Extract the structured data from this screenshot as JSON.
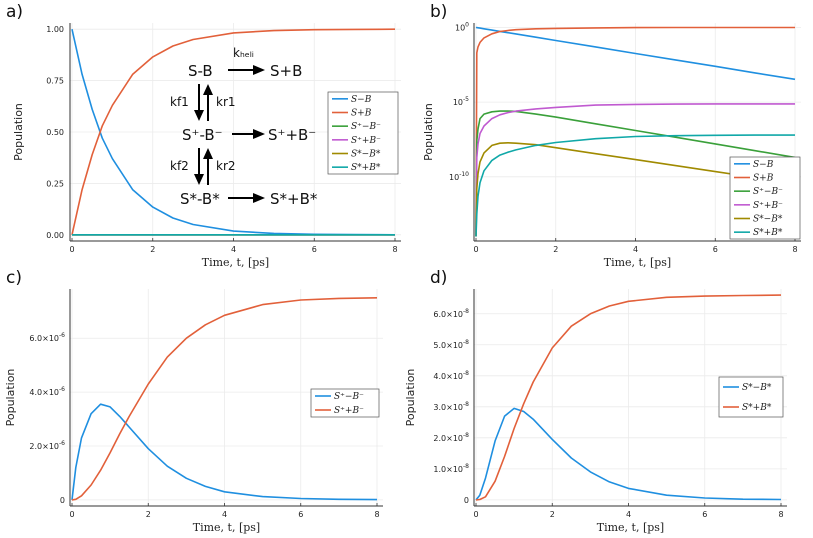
{
  "colors": {
    "blue": "#1f8fe0",
    "orange": "#e2603a",
    "green": "#3aa03a",
    "purple": "#c05ad0",
    "olive": "#a08a00",
    "teal": "#10a8a8",
    "grid": "#ebebeb",
    "axis": "#333333"
  },
  "scheme": {
    "sb": "S-B",
    "sb_prod": "S+B",
    "splus": "S⁺-B⁻",
    "splus_prod": "S⁺+B⁻",
    "sstar": "S*-B*",
    "sstar_prod": "S*+B*",
    "k_heli": "kₕₑₗᵢ",
    "k_f1": "kf1",
    "k_r1": "kr1",
    "k_f2": "kf2",
    "k_r2": "kr2"
  },
  "chart_data": [
    {
      "panel": "a)",
      "type": "line",
      "xlabel": "Time, t, [ps]",
      "ylabel": "Population",
      "xlim": [
        0,
        8
      ],
      "ylim": [
        0,
        1
      ],
      "xticks": [
        "0",
        "2",
        "4",
        "6",
        "8"
      ],
      "yticks": [
        "0.00",
        "0.25",
        "0.50",
        "0.75",
        "1.00"
      ],
      "legend_position": "right-middle",
      "x": [
        0,
        0.25,
        0.5,
        0.75,
        1,
        1.5,
        2,
        2.5,
        3,
        4,
        5,
        6,
        7,
        8
      ],
      "series": [
        {
          "name": "S−B",
          "color": "blue",
          "values": [
            1,
            0.78,
            0.61,
            0.47,
            0.37,
            0.22,
            0.135,
            0.082,
            0.05,
            0.018,
            0.007,
            0.0025,
            0.0009,
            0.0003
          ]
        },
        {
          "name": "S+B",
          "color": "orange",
          "values": [
            0,
            0.22,
            0.39,
            0.53,
            0.63,
            0.78,
            0.865,
            0.918,
            0.95,
            0.982,
            0.993,
            0.9975,
            0.9991,
            0.9997
          ]
        },
        {
          "name": "S⁺−B⁻",
          "color": "green",
          "values": [
            0,
            0,
            0,
            0,
            0,
            0,
            0,
            0,
            0,
            0,
            0,
            0,
            0,
            0
          ]
        },
        {
          "name": "S⁺+B⁻",
          "color": "purple",
          "values": [
            0,
            0,
            0,
            0,
            0,
            0,
            0,
            0,
            0,
            0,
            0,
            0,
            0,
            0
          ]
        },
        {
          "name": "S*−B*",
          "color": "olive",
          "values": [
            0,
            0,
            0,
            0,
            0,
            0,
            0,
            0,
            0,
            0,
            0,
            0,
            0,
            0
          ]
        },
        {
          "name": "S*+B*",
          "color": "teal",
          "values": [
            0,
            0,
            0,
            0,
            0,
            0,
            0,
            0,
            0,
            0,
            0,
            0,
            0,
            0
          ]
        }
      ]
    },
    {
      "panel": "b)",
      "type": "line",
      "yscale": "log",
      "xlabel": "Time, t, [ps]",
      "ylabel": "Population",
      "xlim": [
        0,
        8
      ],
      "ylim_log10": [
        -14.3,
        0.3
      ],
      "xticks": [
        "0",
        "2",
        "4",
        "6",
        "8"
      ],
      "yticks": [
        {
          "base": "10",
          "exp": "0",
          "value": 0
        },
        {
          "base": "10",
          "exp": "-5",
          "value": -5
        },
        {
          "base": "10",
          "exp": "-10",
          "value": -10
        }
      ],
      "legend_position": "bottom-right",
      "x": [
        0,
        0.02,
        0.05,
        0.1,
        0.2,
        0.4,
        0.6,
        0.8,
        1,
        1.5,
        2,
        3,
        4,
        5,
        6,
        7,
        8
      ],
      "series": [
        {
          "name": "S−B",
          "color": "blue",
          "log10_values": [
            0,
            -0.009,
            -0.022,
            -0.043,
            -0.087,
            -0.174,
            -0.26,
            -0.35,
            -0.43,
            -0.65,
            -0.87,
            -1.3,
            -1.74,
            -2.17,
            -2.6,
            -3.04,
            -3.47
          ]
        },
        {
          "name": "S+B",
          "color": "orange",
          "log10_values": [
            -14,
            -1.7,
            -1.3,
            -1.0,
            -0.7,
            -0.42,
            -0.27,
            -0.2,
            -0.15,
            -0.09,
            -0.06,
            -0.025,
            -0.01,
            -0.004,
            -0.002,
            -0.001,
            0
          ]
        },
        {
          "name": "S⁺−B⁻",
          "color": "green",
          "log10_values": [
            -14,
            -7.6,
            -6.8,
            -6.1,
            -5.8,
            -5.65,
            -5.6,
            -5.6,
            -5.62,
            -5.8,
            -6.0,
            -6.45,
            -6.9,
            -7.35,
            -7.8,
            -8.25,
            -8.7
          ]
        },
        {
          "name": "S⁺+B⁻",
          "color": "purple",
          "log10_values": [
            -14,
            -8.7,
            -7.8,
            -7.1,
            -6.6,
            -6.1,
            -5.85,
            -5.7,
            -5.6,
            -5.45,
            -5.35,
            -5.2,
            -5.15,
            -5.13,
            -5.12,
            -5.12,
            -5.12
          ]
        },
        {
          "name": "S*−B*",
          "color": "olive",
          "log10_values": [
            -14,
            -10.8,
            -9.8,
            -9.0,
            -8.4,
            -7.9,
            -7.75,
            -7.72,
            -7.75,
            -7.85,
            -8.05,
            -8.45,
            -8.85,
            -9.25,
            -9.65,
            -10.05,
            -10.45
          ]
        },
        {
          "name": "S*+B*",
          "color": "teal",
          "log10_values": [
            -14,
            -12.5,
            -11.3,
            -10.4,
            -9.6,
            -8.9,
            -8.55,
            -8.35,
            -8.2,
            -7.9,
            -7.7,
            -7.45,
            -7.3,
            -7.25,
            -7.22,
            -7.21,
            -7.21
          ]
        }
      ]
    },
    {
      "panel": "c)",
      "type": "line",
      "xlabel": "Time, t, [ps]",
      "ylabel": "Population",
      "xlim": [
        0,
        8
      ],
      "ylim": [
        0,
        7.6e-06
      ],
      "xticks": [
        "0",
        "2",
        "4",
        "6",
        "8"
      ],
      "yticks": [
        {
          "label": "0",
          "value": 0
        },
        {
          "mant": "2.0",
          "exp": "-6",
          "value": 2e-06
        },
        {
          "mant": "4.0",
          "exp": "-6",
          "value": 4e-06
        },
        {
          "mant": "6.0",
          "exp": "-6",
          "value": 6e-06
        }
      ],
      "legend_position": "right-middle",
      "x": [
        0,
        0.1,
        0.25,
        0.5,
        0.75,
        1,
        1.25,
        1.5,
        2,
        2.5,
        3,
        3.5,
        4,
        5,
        6,
        7,
        8
      ],
      "series": [
        {
          "name": "S⁺−B⁻",
          "color": "blue",
          "values": [
            0,
            1.2e-06,
            2.3e-06,
            3.2e-06,
            3.55e-06,
            3.45e-06,
            3.1e-06,
            2.7e-06,
            1.9e-06,
            1.25e-06,
            8e-07,
            5e-07,
            3e-07,
            1.2e-07,
            5e-08,
            2e-08,
            1e-08
          ]
        },
        {
          "name": "S⁺+B⁻",
          "color": "orange",
          "values": [
            0,
            2e-08,
            1.5e-07,
            5.5e-07,
            1.1e-06,
            1.75e-06,
            2.45e-06,
            3.1e-06,
            4.3e-06,
            5.3e-06,
            6e-06,
            6.5e-06,
            6.85e-06,
            7.25e-06,
            7.42e-06,
            7.48e-06,
            7.5e-06
          ]
        }
      ]
    },
    {
      "panel": "d)",
      "type": "line",
      "xlabel": "Time, t, [ps]",
      "ylabel": "Population",
      "xlim": [
        0,
        8
      ],
      "ylim": [
        0,
        6.6e-08
      ],
      "xticks": [
        "0",
        "2",
        "4",
        "6",
        "8"
      ],
      "yticks": [
        {
          "label": "0",
          "value": 0
        },
        {
          "mant": "1.0",
          "exp": "-8",
          "value": 1e-08
        },
        {
          "mant": "2.0",
          "exp": "-8",
          "value": 2e-08
        },
        {
          "mant": "3.0",
          "exp": "-8",
          "value": 3e-08
        },
        {
          "mant": "4.0",
          "exp": "-8",
          "value": 4e-08
        },
        {
          "mant": "5.0",
          "exp": "-8",
          "value": 5e-08
        },
        {
          "mant": "6.0",
          "exp": "-8",
          "value": 6e-08
        }
      ],
      "legend_position": "right-middle",
      "x": [
        0,
        0.1,
        0.25,
        0.5,
        0.75,
        1,
        1.25,
        1.5,
        2,
        2.5,
        3,
        3.5,
        4,
        5,
        6,
        7,
        8
      ],
      "series": [
        {
          "name": "S*−B*",
          "color": "blue",
          "values": [
            0,
            1.5e-09,
            7e-09,
            1.9e-08,
            2.7e-08,
            2.95e-08,
            2.85e-08,
            2.6e-08,
            1.95e-08,
            1.35e-08,
            9e-09,
            5.8e-09,
            3.7e-09,
            1.5e-09,
            6e-10,
            2e-10,
            1e-10
          ]
        },
        {
          "name": "S*+B*",
          "color": "orange",
          "values": [
            0,
            1e-10,
            1e-09,
            6e-09,
            1.4e-08,
            2.3e-08,
            3.1e-08,
            3.8e-08,
            4.9e-08,
            5.6e-08,
            6e-08,
            6.25e-08,
            6.4e-08,
            6.53e-08,
            6.57e-08,
            6.59e-08,
            6.6e-08
          ]
        }
      ]
    }
  ]
}
